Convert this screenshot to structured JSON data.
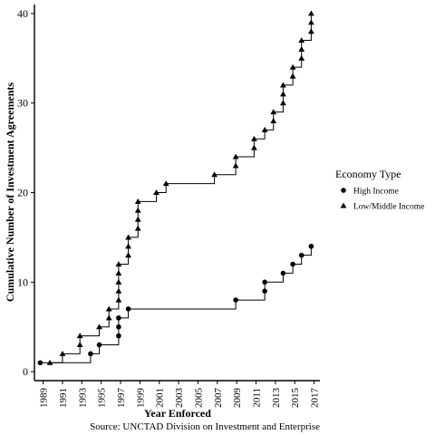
{
  "chart_data": {
    "type": "line",
    "step": true,
    "title": "",
    "xlabel": "Year Enforced",
    "ylabel": "Cumulative Number of Investment Agreements",
    "caption": "Source: UNCTAD Division on Investment and Enterprise",
    "xlim": [
      1988.1,
      2017.6
    ],
    "ylim": [
      -1,
      41
    ],
    "x_ticks": [
      "1989",
      "1991",
      "1993",
      "1995",
      "1997",
      "1999",
      "2001",
      "2003",
      "2005",
      "2007",
      "2009",
      "2011",
      "2013",
      "2015",
      "2017"
    ],
    "y_ticks": [
      0,
      10,
      20,
      30,
      40
    ],
    "grid": false,
    "legend": {
      "title": "Economy Type",
      "placement": "right",
      "entries": [
        {
          "label": "High Income",
          "marker": "circle"
        },
        {
          "label": "Low/Middle Income",
          "marker": "triangle"
        }
      ]
    },
    "series": [
      {
        "name": "High Income",
        "marker": "circle",
        "x": [
          1988.7,
          1993.9,
          1994.8,
          1996.8,
          1996.8,
          1996.8,
          1997.8,
          2008.9,
          2011.9,
          2011.9,
          2013.8,
          2014.8,
          2015.7,
          2016.7
        ],
        "y": [
          1,
          2,
          3,
          4,
          5,
          6,
          7,
          8,
          9,
          10,
          11,
          12,
          13,
          14
        ]
      },
      {
        "name": "Low/Middle Income",
        "marker": "triangle",
        "x": [
          1989.7,
          1991.0,
          1992.8,
          1992.8,
          1994.8,
          1995.8,
          1995.8,
          1996.8,
          1996.8,
          1996.8,
          1996.8,
          1996.8,
          1997.8,
          1997.8,
          1997.8,
          1998.8,
          1998.8,
          1998.8,
          1998.8,
          2000.7,
          2001.7,
          2006.7,
          2008.9,
          2008.9,
          2010.8,
          2010.8,
          2011.9,
          2012.8,
          2012.8,
          2013.8,
          2013.8,
          2013.8,
          2014.8,
          2014.8,
          2015.7,
          2015.7,
          2015.7,
          2016.7,
          2016.7,
          2016.7
        ],
        "y": [
          1,
          2,
          3,
          4,
          5,
          6,
          7,
          8,
          9,
          10,
          11,
          12,
          13,
          14,
          15,
          16,
          17,
          18,
          19,
          20,
          21,
          22,
          23,
          24,
          25,
          26,
          27,
          28,
          29,
          30,
          31,
          32,
          33,
          34,
          35,
          36,
          37,
          38,
          39,
          40
        ]
      }
    ]
  }
}
